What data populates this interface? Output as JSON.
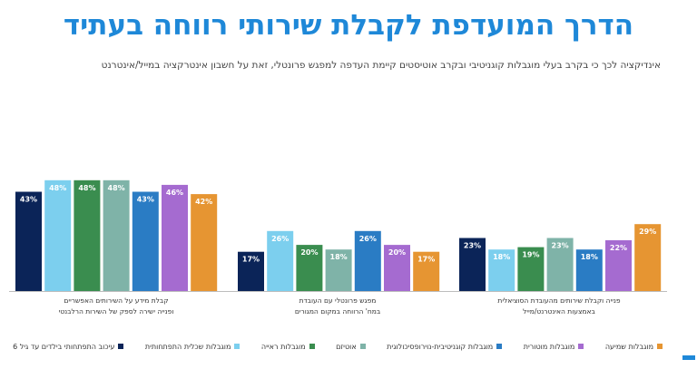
{
  "chart_data": {
    "type": "bar",
    "title": "הדרך המועדפת לקבלת שירותי רווחה בעתיד",
    "subtitle": "אינדיקציה לכך כי בקרב בעלי מוגבלות קוגניטיבי ובקרב אוטיסטים קיימת העדפה למפגש פרונטלי, זאת על חשבון אינטרקציה במייל/אינטרנט",
    "ylim": [
      0,
      55
    ],
    "categories": [
      [
        "קבלת מידע על השירותים האפשריים",
        "ופנייה ישירה לספק של השירות הרלבנטי"
      ],
      [
        "מפגש פרונטלי עם העובדת",
        "במח' הרווחה במקום המגורים"
      ],
      [
        "פנייה וקבלת שירותים מהעובדת הסוציאלית",
        "באמצעות האינטרנט/מייל"
      ]
    ],
    "series": [
      {
        "name": "עיכוב התפתחותי בילדים עד גיל 6",
        "color": "#0b2458",
        "values": [
          43,
          17,
          23
        ]
      },
      {
        "name": "מוגבלות שכלית התפתחותית",
        "color": "#7ccfee",
        "values": [
          48,
          26,
          18
        ]
      },
      {
        "name": "מוגבלות ראייה",
        "color": "#3a8d4f",
        "values": [
          48,
          20,
          19
        ]
      },
      {
        "name": "אוטיזם",
        "color": "#7fb3a8",
        "values": [
          48,
          18,
          23
        ]
      },
      {
        "name": "מוגבלות קוגניטיבית-נוירופסיכולוגית",
        "color": "#2a7cc4",
        "values": [
          43,
          26,
          18
        ]
      },
      {
        "name": "מוגבלות מוטורית",
        "color": "#a56bd0",
        "values": [
          46,
          20,
          22
        ]
      },
      {
        "name": "מוגבלות שמיעה",
        "color": "#e69532",
        "values": [
          42,
          17,
          29
        ]
      }
    ],
    "value_suffix": "%",
    "grid": false,
    "legend_position": "bottom"
  }
}
